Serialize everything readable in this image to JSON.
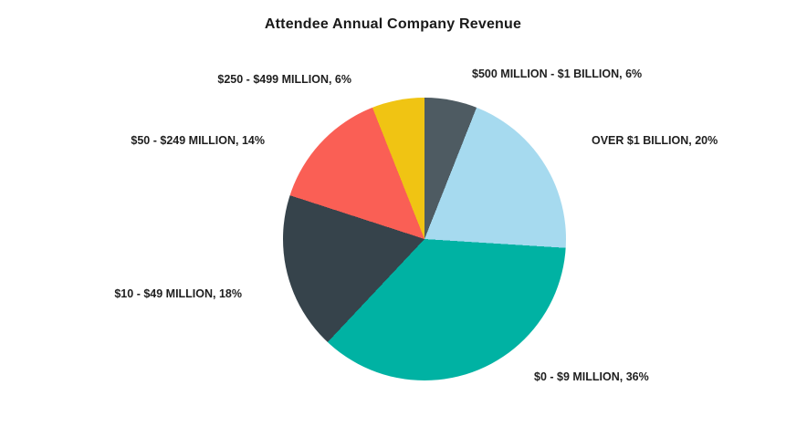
{
  "chart_data": {
    "type": "pie",
    "title": "Attendee Annual Company Revenue",
    "start_angle_deg": 0,
    "direction": "clockwise",
    "legend_position": "labels-outside-slices",
    "background_color": "#ffffff",
    "label_color": "#1f1f1f",
    "slices": [
      {
        "category": "$500 MILLION - $1 BILLION",
        "value": 6,
        "color": "#4e5b62",
        "label": "$500 MILLION - $1 BILLION, 6%"
      },
      {
        "category": "OVER $1 BILLION",
        "value": 20,
        "color": "#a6daef",
        "label": "OVER $1 BILLION, 20%"
      },
      {
        "category": "$0 - $9 MILLION",
        "value": 36,
        "color": "#00b2a3",
        "label": "$0 - $9 MILLION, 36%"
      },
      {
        "category": "$10 - $49 MILLION",
        "value": 18,
        "color": "#36434b",
        "label": "$10 - $49 MILLION, 18%"
      },
      {
        "category": "$50 - $249 MILLION",
        "value": 14,
        "color": "#fa5f55",
        "label": "$50 - $249 MILLION, 14%"
      },
      {
        "category": "$250 - $499 MILLION",
        "value": 6,
        "color": "#f0c413",
        "label": "$250 - $499 MILLION, 6%"
      }
    ]
  }
}
